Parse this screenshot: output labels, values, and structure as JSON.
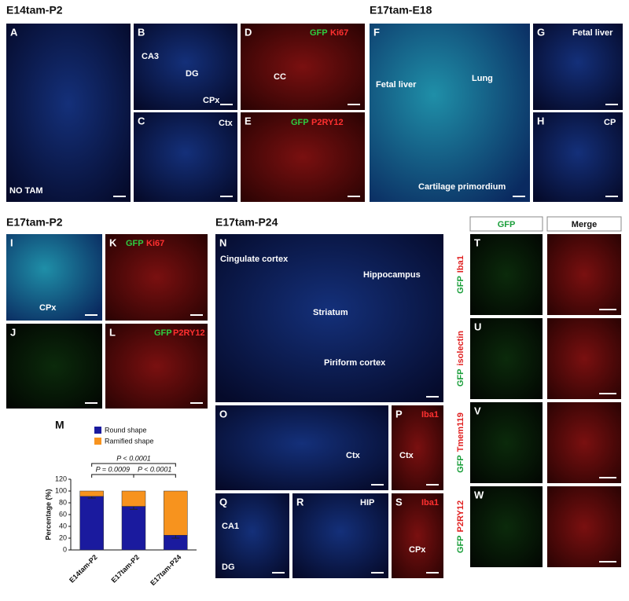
{
  "sections": [
    "E14tam-P2",
    "E17tam-E18",
    "E17tam-P2",
    "E17tam-P24"
  ],
  "panels": [
    {
      "letter": "A",
      "labels": [
        {
          "text": "NO TAM",
          "color": "#ffffff"
        }
      ]
    },
    {
      "letter": "B",
      "labels": [
        {
          "text": "CA3",
          "color": "#ffffff"
        },
        {
          "text": "DG",
          "color": "#ffffff"
        },
        {
          "text": "CPx",
          "color": "#ffffff"
        }
      ]
    },
    {
      "letter": "C",
      "labels": [
        {
          "text": "Ctx",
          "color": "#ffffff"
        }
      ]
    },
    {
      "letter": "D",
      "labels": [
        {
          "text": "GFP",
          "color": "#2ecc40"
        },
        {
          "text": "Ki67",
          "color": "#ff3030"
        },
        {
          "text": "CC",
          "color": "#ffffff"
        }
      ]
    },
    {
      "letter": "E",
      "labels": [
        {
          "text": "GFP",
          "color": "#2ecc40"
        },
        {
          "text": "P2RY12",
          "color": "#ff3030"
        }
      ]
    },
    {
      "letter": "F",
      "labels": [
        {
          "text": "Fetal liver",
          "color": "#ffffff"
        },
        {
          "text": "Lung",
          "color": "#ffffff"
        },
        {
          "text": "Cartilage primordium",
          "color": "#ffffff"
        }
      ]
    },
    {
      "letter": "G",
      "labels": [
        {
          "text": "Fetal liver",
          "color": "#ffffff"
        }
      ]
    },
    {
      "letter": "H",
      "labels": [
        {
          "text": "CP",
          "color": "#ffffff"
        }
      ]
    },
    {
      "letter": "I",
      "labels": [
        {
          "text": "CPx",
          "color": "#ffffff"
        }
      ]
    },
    {
      "letter": "K",
      "labels": [
        {
          "text": "GFP",
          "color": "#2ecc40"
        },
        {
          "text": "Ki67",
          "color": "#ff3030"
        }
      ]
    },
    {
      "letter": "J",
      "labels": []
    },
    {
      "letter": "L",
      "labels": [
        {
          "text": "GFP",
          "color": "#2ecc40"
        },
        {
          "text": "P2RY12",
          "color": "#ff3030"
        }
      ]
    },
    {
      "letter": "N",
      "labels": [
        {
          "text": "Cingulate cortex",
          "color": "#ffffff"
        },
        {
          "text": "Hippocampus",
          "color": "#ffffff"
        },
        {
          "text": "Striatum",
          "color": "#ffffff"
        },
        {
          "text": "Piriform cortex",
          "color": "#ffffff"
        }
      ]
    },
    {
      "letter": "O",
      "labels": [
        {
          "text": "Ctx",
          "color": "#ffffff"
        }
      ]
    },
    {
      "letter": "P",
      "labels": [
        {
          "text": "Iba1",
          "color": "#ff3030"
        },
        {
          "text": "Ctx",
          "color": "#ffffff"
        }
      ]
    },
    {
      "letter": "Q",
      "labels": [
        {
          "text": "CA1",
          "color": "#ffffff"
        },
        {
          "text": "DG",
          "color": "#ffffff"
        }
      ]
    },
    {
      "letter": "R",
      "labels": [
        {
          "text": "HIP",
          "color": "#ffffff"
        }
      ]
    },
    {
      "letter": "S",
      "labels": [
        {
          "text": "Iba1",
          "color": "#ff3030"
        },
        {
          "text": "CPx",
          "color": "#ffffff"
        }
      ]
    }
  ],
  "grid_headers": [
    {
      "text": "GFP",
      "color": "#1a9e3a"
    },
    {
      "text": "Merge",
      "color": "#111111"
    }
  ],
  "grid_rows": [
    {
      "letter": "T",
      "stain": [
        {
          "text": "GFP",
          "color": "#1a9e3a"
        },
        {
          "text": "Iba1",
          "color": "#e02020"
        }
      ]
    },
    {
      "letter": "U",
      "stain": [
        {
          "text": "GFP",
          "color": "#1a9e3a"
        },
        {
          "text": "isolectin",
          "color": "#e02020"
        }
      ]
    },
    {
      "letter": "V",
      "stain": [
        {
          "text": "GFP",
          "color": "#1a9e3a"
        },
        {
          "text": "Tmem119",
          "color": "#e02020"
        }
      ]
    },
    {
      "letter": "W",
      "stain": [
        {
          "text": "GFP",
          "color": "#1a9e3a"
        },
        {
          "text": "P2RY12",
          "color": "#e02020"
        }
      ]
    }
  ],
  "chart_data": {
    "type": "stacked_bar",
    "panel_letter": "M",
    "y_label": "Percentage (%)",
    "categories": [
      "E14tam-P2",
      "E17tam-P2",
      "E17tam-P24"
    ],
    "series": [
      {
        "name": "Round shape",
        "color": "#1a1a9e",
        "values": [
          91,
          74,
          25
        ],
        "errors": [
          3,
          5,
          5
        ]
      },
      {
        "name": "Ramified shape",
        "color": "#f7931e",
        "values": [
          9,
          26,
          75
        ]
      }
    ],
    "ylim": [
      0,
      120
    ],
    "yticks": [
      0,
      20,
      40,
      60,
      80,
      100,
      120
    ],
    "comparisons": [
      {
        "from": 0,
        "to": 1,
        "label": "P = 0.0009"
      },
      {
        "from": 1,
        "to": 2,
        "label": "P < 0.0001"
      },
      {
        "from": 0,
        "to": 2,
        "label": "P < 0.0001"
      }
    ]
  }
}
